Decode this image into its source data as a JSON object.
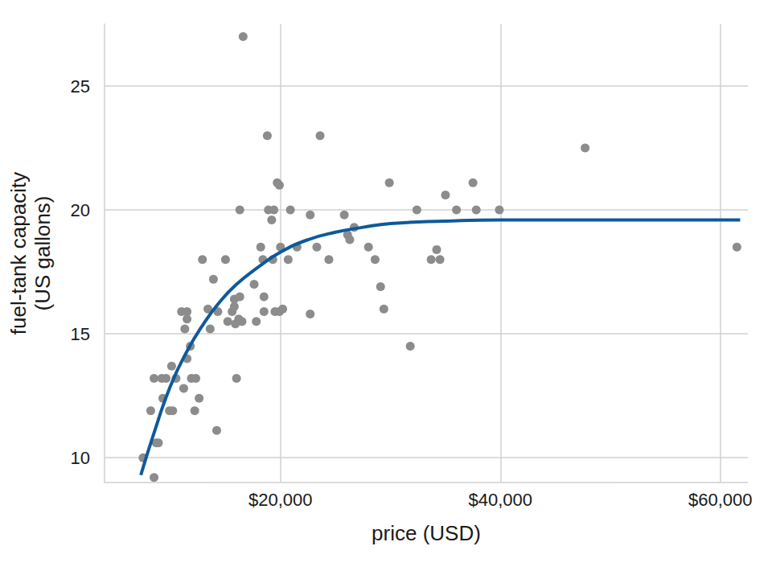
{
  "chart_data": {
    "type": "scatter",
    "xlabel": "price (USD)",
    "ylabel": "fuel-tank capacity\n(US gallons)",
    "xlim": [
      4000,
      62500
    ],
    "ylim": [
      9,
      27.5
    ],
    "xticks": [
      {
        "value": 20000,
        "label": "$20,000"
      },
      {
        "value": 40000,
        "label": "$40,000"
      },
      {
        "value": 60000,
        "label": "$60,000"
      }
    ],
    "yticks": [
      10,
      15,
      20,
      25
    ],
    "grid": true,
    "series": [
      {
        "type": "scatter",
        "marker": "circle",
        "color": "#8c8c8c",
        "x": [
          7500,
          8200,
          8500,
          8700,
          8500,
          8900,
          9300,
          9200,
          9600,
          9900,
          10200,
          10100,
          10500,
          11000,
          11200,
          11300,
          11500,
          11500,
          11500,
          11800,
          11900,
          12200,
          12300,
          12600,
          12900,
          13400,
          13600,
          13900,
          14200,
          14300,
          15200,
          15000,
          15600,
          15800,
          15900,
          15800,
          16000,
          16300,
          16300,
          16600,
          16200,
          16500,
          17600,
          17800,
          18200,
          18400,
          18500,
          18500,
          18800,
          18900,
          19200,
          19300,
          19400,
          19500,
          19700,
          19900,
          20000,
          20200,
          19900,
          20900,
          20700,
          21500,
          22700,
          22700,
          23300,
          23600,
          24400,
          25800,
          26100,
          26300,
          26700,
          28000,
          28600,
          29100,
          29400,
          29900,
          31800,
          32400,
          33700,
          34200,
          34500,
          35000,
          36000,
          37500,
          37800,
          39900,
          47700,
          61500
        ],
        "values": [
          10.0,
          11.9,
          13.2,
          10.6,
          9.2,
          10.6,
          12.4,
          13.2,
          13.2,
          11.9,
          11.9,
          13.7,
          13.2,
          15.9,
          12.8,
          15.2,
          15.9,
          15.6,
          14.0,
          14.5,
          13.2,
          11.9,
          13.2,
          12.4,
          18.0,
          16.0,
          15.2,
          17.2,
          11.1,
          15.9,
          15.5,
          18.0,
          15.9,
          16.1,
          15.4,
          16.4,
          13.2,
          16.5,
          20.0,
          27.0,
          15.6,
          15.5,
          17.0,
          15.5,
          18.5,
          18.0,
          15.9,
          16.5,
          23.0,
          20.0,
          19.6,
          18.0,
          20.0,
          15.9,
          21.1,
          21.0,
          18.5,
          16.0,
          15.9,
          20.0,
          18.0,
          18.5,
          19.8,
          15.8,
          18.5,
          23.0,
          18.0,
          19.8,
          19.0,
          18.8,
          19.3,
          18.5,
          18.0,
          16.9,
          16.0,
          21.1,
          14.5,
          20.0,
          18.0,
          18.4,
          18.0,
          20.6,
          20.0,
          21.1,
          20.0,
          20.0,
          22.5,
          18.5
        ]
      },
      {
        "type": "line",
        "line_style": "solid",
        "color": "#0d5a9a",
        "x": [
          7300,
          8500,
          10000,
          11500,
          13000,
          14500,
          16000,
          18000,
          20000,
          22500,
          25000,
          27500,
          30000,
          35000,
          40000,
          50000,
          61800
        ],
        "values": [
          9.3,
          11.0,
          12.9,
          14.3,
          15.4,
          16.3,
          17.0,
          17.7,
          18.3,
          18.8,
          19.1,
          19.3,
          19.45,
          19.55,
          19.6,
          19.6,
          19.6
        ]
      }
    ]
  }
}
